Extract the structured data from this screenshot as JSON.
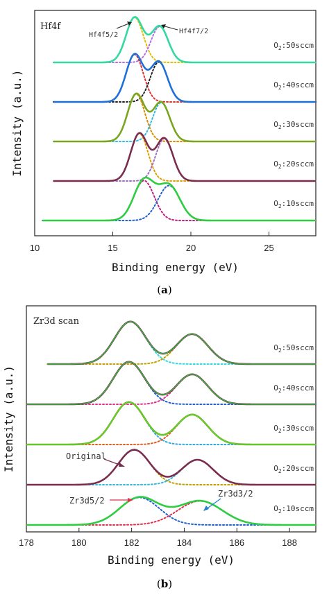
{
  "figure": {
    "label_a": "a",
    "label_b": "b"
  },
  "chart_data": [
    {
      "type": "line",
      "panel": "a",
      "inset_title": "Hf4f",
      "xlabel": "Binding energy (eV)",
      "ylabel": "Intensity (a.u.)",
      "xlim": [
        10,
        28
      ],
      "x_ticks": [
        10,
        15,
        20,
        25
      ],
      "y_ticks": [],
      "grid": false,
      "annotations": [
        "Hf4f5/2",
        "Hf4f7/2"
      ],
      "series": [
        {
          "label": "O2:50sccm",
          "offset": 4,
          "xrange": [
            11.2,
            28
          ],
          "color": "#33d9a0",
          "peaks": [
            {
              "center": 16.4,
              "height": 0.9,
              "width": 0.55,
              "color": "#e0c000"
            },
            {
              "center": 18.0,
              "height": 0.72,
              "width": 0.55,
              "color": "#b070e0"
            }
          ]
        },
        {
          "label": "O2:40sccm",
          "offset": 3,
          "xrange": [
            11.2,
            28
          ],
          "color": "#1f6fd8",
          "peaks": [
            {
              "center": 16.4,
              "height": 0.95,
              "width": 0.55,
              "color": "#e03030"
            },
            {
              "center": 17.95,
              "height": 0.8,
              "width": 0.55,
              "color": "#222222"
            }
          ]
        },
        {
          "label": "O2:30sccm",
          "offset": 2,
          "xrange": [
            11.2,
            28
          ],
          "color": "#7aa520",
          "peaks": [
            {
              "center": 16.5,
              "height": 0.95,
              "width": 0.55,
              "color": "#e08a00"
            },
            {
              "center": 18.1,
              "height": 0.78,
              "width": 0.55,
              "color": "#33b8e0"
            }
          ]
        },
        {
          "label": "O2:20sccm",
          "offset": 1,
          "xrange": [
            11.2,
            28
          ],
          "color": "#7b2d4e",
          "peaks": [
            {
              "center": 16.7,
              "height": 0.95,
              "width": 0.55,
              "color": "#e0a000"
            },
            {
              "center": 18.3,
              "height": 0.85,
              "width": 0.55,
              "color": "#a070c0"
            }
          ]
        },
        {
          "label": "O2:10sccm",
          "offset": 0,
          "xrange": [
            10.5,
            28
          ],
          "color": "#2ecc40",
          "peaks": [
            {
              "center": 17.0,
              "height": 0.8,
              "width": 0.65,
              "color": "#c02080"
            },
            {
              "center": 18.6,
              "height": 0.7,
              "width": 0.7,
              "color": "#2060d0"
            }
          ]
        }
      ]
    },
    {
      "type": "line",
      "panel": "b",
      "inset_title": "Zr3d scan",
      "xlabel": "Binding energy (eV)",
      "ylabel": "Intensity (a.u.)",
      "xlim": [
        178,
        189
      ],
      "x_ticks": [
        178,
        180,
        182,
        184,
        186,
        188
      ],
      "y_ticks": [],
      "grid": false,
      "annotations": [
        "Original",
        "Zr3d5/2",
        "Zr3d3/2"
      ],
      "series": [
        {
          "label": "O2:50sccm",
          "offset": 4,
          "xrange": [
            178.8,
            189
          ],
          "color": "#7b2d4e",
          "fit_color": "#2ecc40",
          "peaks": [
            {
              "center": 181.95,
              "height": 0.85,
              "width": 0.6,
              "color": "#33d9d9"
            },
            {
              "center": 184.3,
              "height": 0.6,
              "width": 0.6,
              "color": "#c0a000"
            }
          ]
        },
        {
          "label": "O2:40sccm",
          "offset": 3,
          "xrange": [
            178,
            189
          ],
          "color": "#7b2d4e",
          "fit_color": "#2ecc40",
          "peaks": [
            {
              "center": 181.9,
              "height": 0.85,
              "width": 0.6,
              "color": "#2060d0"
            },
            {
              "center": 184.3,
              "height": 0.6,
              "width": 0.6,
              "color": "#e0308a"
            }
          ]
        },
        {
          "label": "O2:30sccm",
          "offset": 2,
          "xrange": [
            178,
            189
          ],
          "color": "#7aa520",
          "fit_color": "#55dd30",
          "peaks": [
            {
              "center": 181.9,
              "height": 0.85,
              "width": 0.6,
              "color": "#33a8e0"
            },
            {
              "center": 184.3,
              "height": 0.6,
              "width": 0.6,
              "color": "#e06020"
            }
          ]
        },
        {
          "label": "O2:20sccm",
          "offset": 1,
          "xrange": [
            178,
            189
          ],
          "color": "#7b2d4e",
          "fit_color": "#7b2d4e",
          "peaks": [
            {
              "center": 182.1,
              "height": 0.7,
              "width": 0.6,
              "color": "#c0a000"
            },
            {
              "center": 184.5,
              "height": 0.5,
              "width": 0.6,
              "color": "#33b8e0"
            }
          ]
        },
        {
          "label": "O2:10sccm",
          "offset": 0,
          "xrange": [
            178,
            189
          ],
          "color": "#2ecc40",
          "fit_color": "#2ecc40",
          "peaks": [
            {
              "center": 182.3,
              "height": 0.55,
              "width": 0.75,
              "color": "#2060d0"
            },
            {
              "center": 184.6,
              "height": 0.48,
              "width": 0.85,
              "color": "#e03050"
            }
          ]
        }
      ]
    }
  ]
}
